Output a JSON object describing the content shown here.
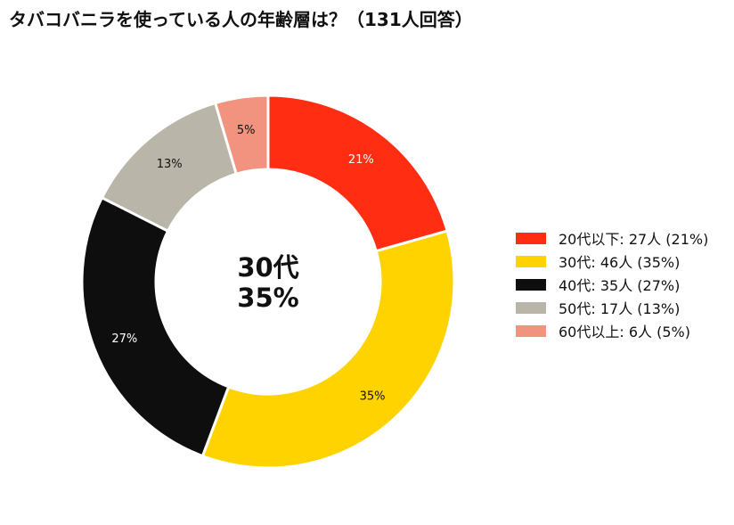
{
  "chart_data": {
    "type": "pie",
    "title": "タバコバニラを使っている人の年齢層は？（131人回答）",
    "donut": true,
    "center_label": {
      "line1": "30代",
      "line2": "35%"
    },
    "legend_position": "right",
    "slices": [
      {
        "label": "20代以下",
        "count": 27,
        "count_label": "27人",
        "percent": 21,
        "percent_label": "21%",
        "legend": "20代以下:  27人 (21%)",
        "color": "#ff2e12",
        "label_color": "#ffffff"
      },
      {
        "label": "30代",
        "count": 46,
        "count_label": "46人",
        "percent": 35,
        "percent_label": "35%",
        "legend": "30代:  46人 (35%)",
        "color": "#ffd300",
        "label_color": "#111111"
      },
      {
        "label": "40代",
        "count": 35,
        "count_label": "35人",
        "percent": 27,
        "percent_label": "27%",
        "legend": "40代:  35人 (27%)",
        "color": "#0e0e0e",
        "label_color": "#ffffff"
      },
      {
        "label": "50代",
        "count": 17,
        "count_label": "17人",
        "percent": 13,
        "percent_label": "13%",
        "legend": "50代:  17人 (13%)",
        "color": "#b9b5a8",
        "label_color": "#111111"
      },
      {
        "label": "60代以上",
        "count": 6,
        "count_label": "6人",
        "percent": 5,
        "percent_label": "5%",
        "legend": "60代以上:  6人 (5%)",
        "color": "#f1937f",
        "label_color": "#111111"
      }
    ],
    "draw_order": [
      4,
      3,
      2,
      1,
      0
    ]
  }
}
